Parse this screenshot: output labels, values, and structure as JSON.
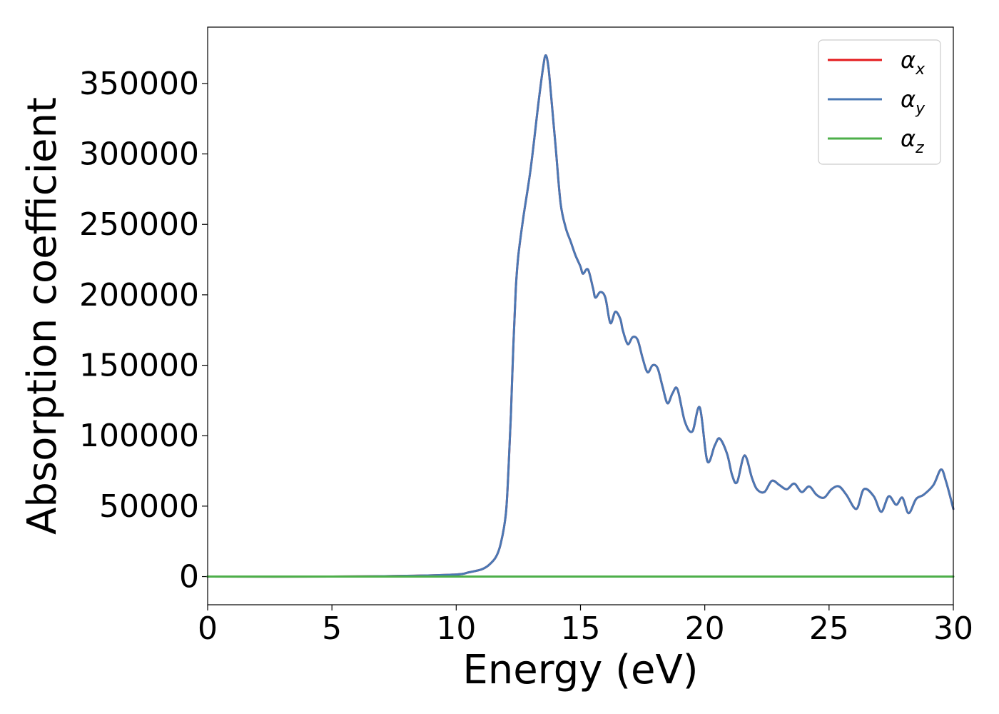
{
  "chart_data": {
    "type": "line",
    "title": "",
    "xlabel": "Energy (eV)",
    "ylabel": "Absorption coefficient",
    "xlim": [
      0,
      30
    ],
    "ylim": [
      -20000,
      390000
    ],
    "xticks": [
      0,
      5,
      10,
      15,
      20,
      25,
      30
    ],
    "xtick_labels": [
      "0",
      "5",
      "10",
      "15",
      "20",
      "25",
      "30"
    ],
    "yticks": [
      0,
      50000,
      100000,
      150000,
      200000,
      250000,
      300000,
      350000
    ],
    "ytick_labels": [
      "0",
      "50000",
      "100000",
      "150000",
      "200000",
      "250000",
      "300000",
      "350000"
    ],
    "grid": false,
    "legend_position": "top-right",
    "series": [
      {
        "name": "α_x",
        "legend_symbol": "α",
        "legend_sub": "x",
        "color": "#e41a1c",
        "x": [
          0,
          5,
          8,
          10,
          10.5,
          11,
          11.3,
          11.6,
          11.8,
          12.0,
          12.1,
          12.2,
          12.3,
          12.4,
          12.5,
          12.7,
          13.0,
          13.3,
          13.5,
          13.6,
          13.7,
          13.8,
          14.0,
          14.2,
          14.4,
          14.6,
          14.8,
          15.0,
          15.1,
          15.3,
          15.5,
          15.6,
          15.8,
          16.0,
          16.2,
          16.4,
          16.6,
          16.7,
          16.9,
          17.1,
          17.3,
          17.5,
          17.7,
          17.9,
          18.1,
          18.3,
          18.5,
          18.7,
          18.9,
          19.2,
          19.5,
          19.8,
          20.1,
          20.4,
          20.6,
          20.9,
          21.1,
          21.3,
          21.6,
          21.9,
          22.1,
          22.4,
          22.7,
          23.0,
          23.3,
          23.6,
          23.9,
          24.2,
          24.5,
          24.8,
          25.1,
          25.4,
          25.7,
          26.1,
          26.4,
          26.8,
          27.1,
          27.4,
          27.7,
          27.95,
          28.2,
          28.5,
          28.8,
          29.2,
          29.5,
          29.7,
          30
        ],
        "y": [
          0,
          0,
          500,
          1500,
          3000,
          5000,
          8000,
          14000,
          24000,
          45000,
          75000,
          115000,
          165000,
          205000,
          228000,
          255000,
          290000,
          335000,
          362000,
          370000,
          363000,
          345000,
          305000,
          265000,
          248000,
          238000,
          228000,
          220000,
          215000,
          218000,
          205000,
          198000,
          202000,
          198000,
          180000,
          188000,
          183000,
          175000,
          165000,
          170000,
          168000,
          155000,
          145000,
          150000,
          148000,
          135000,
          123000,
          130000,
          133000,
          110000,
          103000,
          120000,
          82000,
          93000,
          98000,
          87000,
          72000,
          67000,
          86000,
          70000,
          62000,
          60000,
          68000,
          65000,
          62000,
          66000,
          60000,
          64000,
          58000,
          56000,
          62000,
          64000,
          58000,
          48000,
          62000,
          57000,
          46000,
          57000,
          51000,
          56000,
          45000,
          55000,
          58000,
          65000,
          76000,
          68000,
          48000
        ]
      },
      {
        "name": "α_y",
        "legend_symbol": "α",
        "legend_sub": "y",
        "color": "#4a78b4",
        "x": [
          0,
          5,
          8,
          10,
          10.5,
          11,
          11.3,
          11.6,
          11.8,
          12.0,
          12.1,
          12.2,
          12.3,
          12.4,
          12.5,
          12.7,
          13.0,
          13.3,
          13.5,
          13.6,
          13.7,
          13.8,
          14.0,
          14.2,
          14.4,
          14.6,
          14.8,
          15.0,
          15.1,
          15.3,
          15.5,
          15.6,
          15.8,
          16.0,
          16.2,
          16.4,
          16.6,
          16.7,
          16.9,
          17.1,
          17.3,
          17.5,
          17.7,
          17.9,
          18.1,
          18.3,
          18.5,
          18.7,
          18.9,
          19.2,
          19.5,
          19.8,
          20.1,
          20.4,
          20.6,
          20.9,
          21.1,
          21.3,
          21.6,
          21.9,
          22.1,
          22.4,
          22.7,
          23.0,
          23.3,
          23.6,
          23.9,
          24.2,
          24.5,
          24.8,
          25.1,
          25.4,
          25.7,
          26.1,
          26.4,
          26.8,
          27.1,
          27.4,
          27.7,
          27.95,
          28.2,
          28.5,
          28.8,
          29.2,
          29.5,
          29.7,
          30
        ],
        "y": [
          0,
          0,
          500,
          1500,
          3000,
          5000,
          8000,
          14000,
          24000,
          45000,
          75000,
          115000,
          165000,
          205000,
          228000,
          255000,
          290000,
          335000,
          362000,
          370000,
          363000,
          345000,
          305000,
          265000,
          248000,
          238000,
          228000,
          220000,
          215000,
          218000,
          205000,
          198000,
          202000,
          198000,
          180000,
          188000,
          183000,
          175000,
          165000,
          170000,
          168000,
          155000,
          145000,
          150000,
          148000,
          135000,
          123000,
          130000,
          133000,
          110000,
          103000,
          120000,
          82000,
          93000,
          98000,
          87000,
          72000,
          67000,
          86000,
          70000,
          62000,
          60000,
          68000,
          65000,
          62000,
          66000,
          60000,
          64000,
          58000,
          56000,
          62000,
          64000,
          58000,
          48000,
          62000,
          57000,
          46000,
          57000,
          51000,
          56000,
          45000,
          55000,
          58000,
          65000,
          76000,
          68000,
          48000
        ]
      },
      {
        "name": "α_z",
        "legend_symbol": "α",
        "legend_sub": "z",
        "color": "#4daf4a",
        "x": [
          0,
          30
        ],
        "y": [
          0,
          0
        ]
      }
    ]
  }
}
